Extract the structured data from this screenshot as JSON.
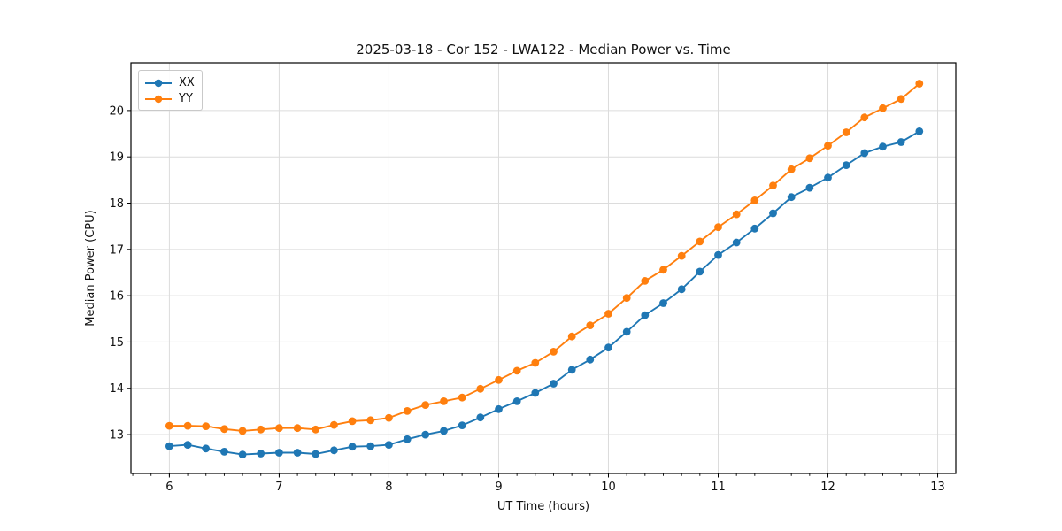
{
  "figure": {
    "background": "#ffffff"
  },
  "chart_data": {
    "type": "line",
    "title": "2025-03-18 - Cor 152 - LWA122 - Median Power vs. Time",
    "xlabel": "UT Time (hours)",
    "ylabel": "Median Power (CPU)",
    "xlim": [
      5.65,
      13.165
    ],
    "ylim": [
      12.16,
      21.03
    ],
    "xticks": [
      6,
      7,
      8,
      9,
      10,
      11,
      12,
      13
    ],
    "yticks": [
      13,
      14,
      15,
      16,
      17,
      18,
      19,
      20
    ],
    "x_minor_tick_step": 0.1666667,
    "grid": true,
    "grid_color": "#dcdcdc",
    "axis_color": "#000000",
    "text_color": "#111111",
    "legend_position": "upper-left",
    "x": [
      6.0,
      6.167,
      6.333,
      6.5,
      6.667,
      6.833,
      7.0,
      7.167,
      7.333,
      7.5,
      7.667,
      7.833,
      8.0,
      8.167,
      8.333,
      8.5,
      8.667,
      8.833,
      9.0,
      9.167,
      9.333,
      9.5,
      9.667,
      9.833,
      10.0,
      10.167,
      10.333,
      10.5,
      10.667,
      10.833,
      11.0,
      11.167,
      11.333,
      11.5,
      11.667,
      11.833,
      12.0,
      12.167,
      12.333,
      12.5,
      12.667,
      12.833
    ],
    "series": [
      {
        "name": "XX",
        "color": "#1f77b4",
        "marker": "circle",
        "values": [
          12.75,
          12.78,
          12.7,
          12.63,
          12.57,
          12.59,
          12.61,
          12.61,
          12.58,
          12.66,
          12.74,
          12.75,
          12.78,
          12.9,
          13.0,
          13.08,
          13.2,
          13.37,
          13.55,
          13.72,
          13.9,
          14.1,
          14.4,
          14.62,
          14.88,
          15.22,
          15.58,
          15.84,
          16.14,
          16.52,
          16.88,
          17.15,
          17.45,
          17.78,
          18.13,
          18.33,
          18.55,
          18.82,
          19.08,
          19.22,
          19.32,
          19.55
        ]
      },
      {
        "name": "YY",
        "color": "#ff7f0e",
        "marker": "circle",
        "values": [
          13.19,
          13.19,
          13.18,
          13.12,
          13.08,
          13.11,
          13.14,
          13.14,
          13.11,
          13.21,
          13.29,
          13.31,
          13.36,
          13.51,
          13.64,
          13.72,
          13.8,
          13.99,
          14.18,
          14.38,
          14.55,
          14.79,
          15.12,
          15.36,
          15.61,
          15.95,
          16.32,
          16.56,
          16.86,
          17.17,
          17.48,
          17.76,
          18.06,
          18.38,
          18.73,
          18.97,
          19.24,
          19.53,
          19.85,
          20.05,
          20.25,
          20.58
        ]
      }
    ]
  }
}
